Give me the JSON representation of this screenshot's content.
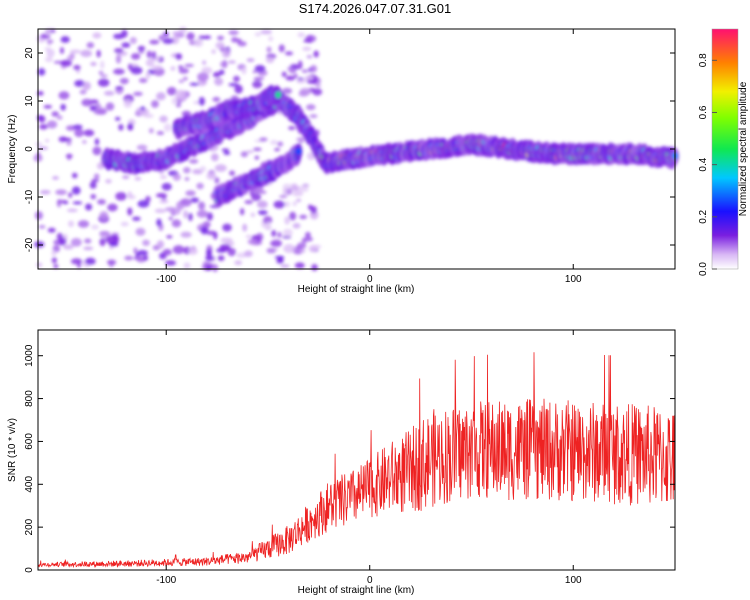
{
  "title": "S174.2026.047.07.31.G01",
  "chart_data": [
    {
      "type": "heatmap",
      "xlabel": "Height of straight line (km)",
      "ylabel": "Frequency (Hz)",
      "xlim": [
        -163,
        150
      ],
      "ylim": [
        -25,
        25
      ],
      "xticks": [
        -100,
        0,
        100
      ],
      "yticks": [
        -20,
        -10,
        0,
        10,
        20
      ],
      "tick_labels_x": [
        "-100",
        "0",
        "100"
      ],
      "tick_labels_y": [
        "-20",
        "-10",
        "0",
        "10",
        "20"
      ],
      "colorbar": {
        "label": "Normalized spectral amplitude",
        "range": [
          0.0,
          0.92
        ],
        "ticks": [
          "0.0",
          "0.2",
          "0.4",
          "0.6",
          "0.8"
        ],
        "tick_values": [
          0.0,
          0.2,
          0.4,
          0.6,
          0.8
        ]
      },
      "ridges": [
        {
          "name": "main",
          "points": [
            [
              -130,
              -2
            ],
            [
              -115,
              -3
            ],
            [
              -100,
              -2
            ],
            [
              -80,
              2
            ],
            [
              -60,
              6
            ],
            [
              -45,
              10
            ],
            [
              -35,
              7
            ],
            [
              -28,
              2
            ],
            [
              -22,
              -3
            ],
            [
              -10,
              -2
            ],
            [
              10,
              -1
            ],
            [
              30,
              0
            ],
            [
              50,
              1
            ],
            [
              70,
              0
            ],
            [
              90,
              -1
            ],
            [
              110,
              -1
            ],
            [
              130,
              -1
            ],
            [
              150,
              -2
            ]
          ]
        },
        {
          "name": "upper",
          "points": [
            [
              -95,
              4
            ],
            [
              -80,
              6
            ],
            [
              -70,
              8
            ],
            [
              -55,
              9
            ],
            [
              -45,
              12
            ]
          ]
        },
        {
          "name": "lower",
          "points": [
            [
              -75,
              -10
            ],
            [
              -60,
              -7
            ],
            [
              -45,
              -4
            ],
            [
              -35,
              -1
            ]
          ]
        }
      ]
    },
    {
      "type": "line",
      "xlabel": "Height of straight line (km)",
      "ylabel": "SNR (10 * v/v)",
      "xlim": [
        -163,
        150
      ],
      "ylim": [
        0,
        1120
      ],
      "xticks": [
        -100,
        0,
        100
      ],
      "yticks": [
        0,
        200,
        400,
        600,
        800,
        1000
      ],
      "tick_labels_x": [
        "-100",
        "0",
        "100"
      ],
      "tick_labels_y": [
        "0",
        "200",
        "400",
        "600",
        "800",
        "1000"
      ],
      "series": [
        {
          "name": "SNR",
          "color": "#ee2222",
          "envelope": {
            "x": [
              -163,
              -120,
              -80,
              -60,
              -40,
              -30,
              -20,
              -10,
              0,
              10,
              20,
              30,
              50,
              70,
              90,
              110,
              130,
              150
            ],
            "mean": [
              25,
              30,
              40,
              60,
              140,
              220,
              300,
              330,
              380,
              430,
              460,
              520,
              560,
              560,
              560,
              550,
              540,
              520
            ],
            "spread": [
              10,
              15,
              20,
              30,
              70,
              90,
              120,
              130,
              140,
              170,
              200,
              230,
              230,
              240,
              240,
              240,
              240,
              240
            ]
          }
        }
      ]
    }
  ]
}
